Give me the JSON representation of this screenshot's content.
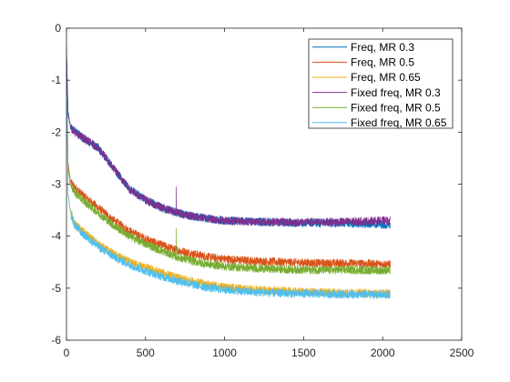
{
  "chart_data": {
    "type": "line",
    "title": "",
    "xlabel": "",
    "ylabel": "",
    "xlim": [
      0,
      2500
    ],
    "ylim": [
      -6,
      0
    ],
    "xticks": [
      0,
      500,
      1000,
      1500,
      2000,
      2500
    ],
    "yticks": [
      0,
      -1,
      -2,
      -3,
      -4,
      -5,
      -6
    ],
    "x_tick_labels": [
      "0",
      "500",
      "1000",
      "1500",
      "2000",
      "2500"
    ],
    "y_tick_labels": [
      "0",
      "-1",
      "-2",
      "-3",
      "-4",
      "-5",
      "-6"
    ],
    "grid": false,
    "legend_position": "top-right",
    "x_end": 2048,
    "series": [
      {
        "name": "Freq, MR 0.3",
        "color": "#0072BD",
        "x": [
          0,
          10,
          25,
          50,
          100,
          200,
          300,
          400,
          500,
          600,
          700,
          800,
          900,
          1000,
          1200,
          1400,
          1600,
          1800,
          2048
        ],
        "y": [
          -0.4,
          -1.6,
          -1.9,
          -1.98,
          -2.1,
          -2.3,
          -2.7,
          -3.1,
          -3.3,
          -3.45,
          -3.55,
          -3.62,
          -3.66,
          -3.7,
          -3.72,
          -3.74,
          -3.75,
          -3.75,
          -3.78
        ],
        "noise": 0.08
      },
      {
        "name": "Freq, MR 0.5",
        "color": "#D95319",
        "x": [
          0,
          10,
          25,
          50,
          100,
          200,
          300,
          400,
          500,
          600,
          700,
          800,
          900,
          1000,
          1200,
          1400,
          1600,
          1800,
          2048
        ],
        "y": [
          -0.3,
          -2.6,
          -2.95,
          -3.05,
          -3.2,
          -3.45,
          -3.7,
          -3.9,
          -4.05,
          -4.17,
          -4.27,
          -4.34,
          -4.4,
          -4.44,
          -4.48,
          -4.5,
          -4.52,
          -4.52,
          -4.54
        ],
        "noise": 0.08
      },
      {
        "name": "Freq, MR 0.65",
        "color": "#EDB120",
        "x": [
          0,
          10,
          25,
          50,
          100,
          200,
          300,
          400,
          500,
          600,
          700,
          800,
          900,
          1000,
          1200,
          1400,
          1600,
          1800,
          2048
        ],
        "y": [
          -0.5,
          -3.2,
          -3.5,
          -3.75,
          -3.9,
          -4.15,
          -4.35,
          -4.5,
          -4.6,
          -4.7,
          -4.8,
          -4.87,
          -4.93,
          -4.98,
          -5.03,
          -5.06,
          -5.08,
          -5.09,
          -5.1
        ],
        "noise": 0.08
      },
      {
        "name": "Fixed freq, MR 0.3",
        "color": "#7E2F8E",
        "x": [
          0,
          10,
          25,
          50,
          100,
          200,
          300,
          400,
          500,
          600,
          700,
          800,
          900,
          1000,
          1200,
          1400,
          1600,
          1800,
          2048
        ],
        "y": [
          -0.5,
          -1.65,
          -1.9,
          -2.0,
          -2.1,
          -2.3,
          -2.7,
          -3.1,
          -3.3,
          -3.45,
          -3.55,
          -3.62,
          -3.66,
          -3.7,
          -3.72,
          -3.73,
          -3.73,
          -3.72,
          -3.7
        ],
        "noise": 0.08
      },
      {
        "name": "Fixed freq, MR 0.5",
        "color": "#77AC30",
        "x": [
          0,
          10,
          25,
          50,
          100,
          200,
          300,
          400,
          500,
          600,
          700,
          800,
          900,
          1000,
          1200,
          1400,
          1600,
          1800,
          2048
        ],
        "y": [
          -0.4,
          -2.7,
          -3.0,
          -3.15,
          -3.3,
          -3.55,
          -3.8,
          -4.0,
          -4.15,
          -4.28,
          -4.4,
          -4.48,
          -4.54,
          -4.58,
          -4.62,
          -4.64,
          -4.65,
          -4.65,
          -4.66
        ],
        "noise": 0.08
      },
      {
        "name": "Fixed freq, MR 0.65",
        "color": "#4DBEEE",
        "x": [
          0,
          10,
          25,
          50,
          100,
          200,
          300,
          400,
          500,
          600,
          700,
          800,
          900,
          1000,
          1200,
          1400,
          1600,
          1800,
          2048
        ],
        "y": [
          -0.6,
          -3.2,
          -3.55,
          -3.78,
          -3.95,
          -4.2,
          -4.4,
          -4.55,
          -4.67,
          -4.77,
          -4.86,
          -4.93,
          -4.99,
          -5.03,
          -5.08,
          -5.1,
          -5.11,
          -5.12,
          -5.13
        ],
        "noise": 0.08
      }
    ],
    "spikes": [
      {
        "series": "Fixed freq, MR 0.3",
        "x": 695,
        "y": -3.05
      },
      {
        "series": "Fixed freq, MR 0.5",
        "x": 695,
        "y": -3.85
      }
    ]
  }
}
